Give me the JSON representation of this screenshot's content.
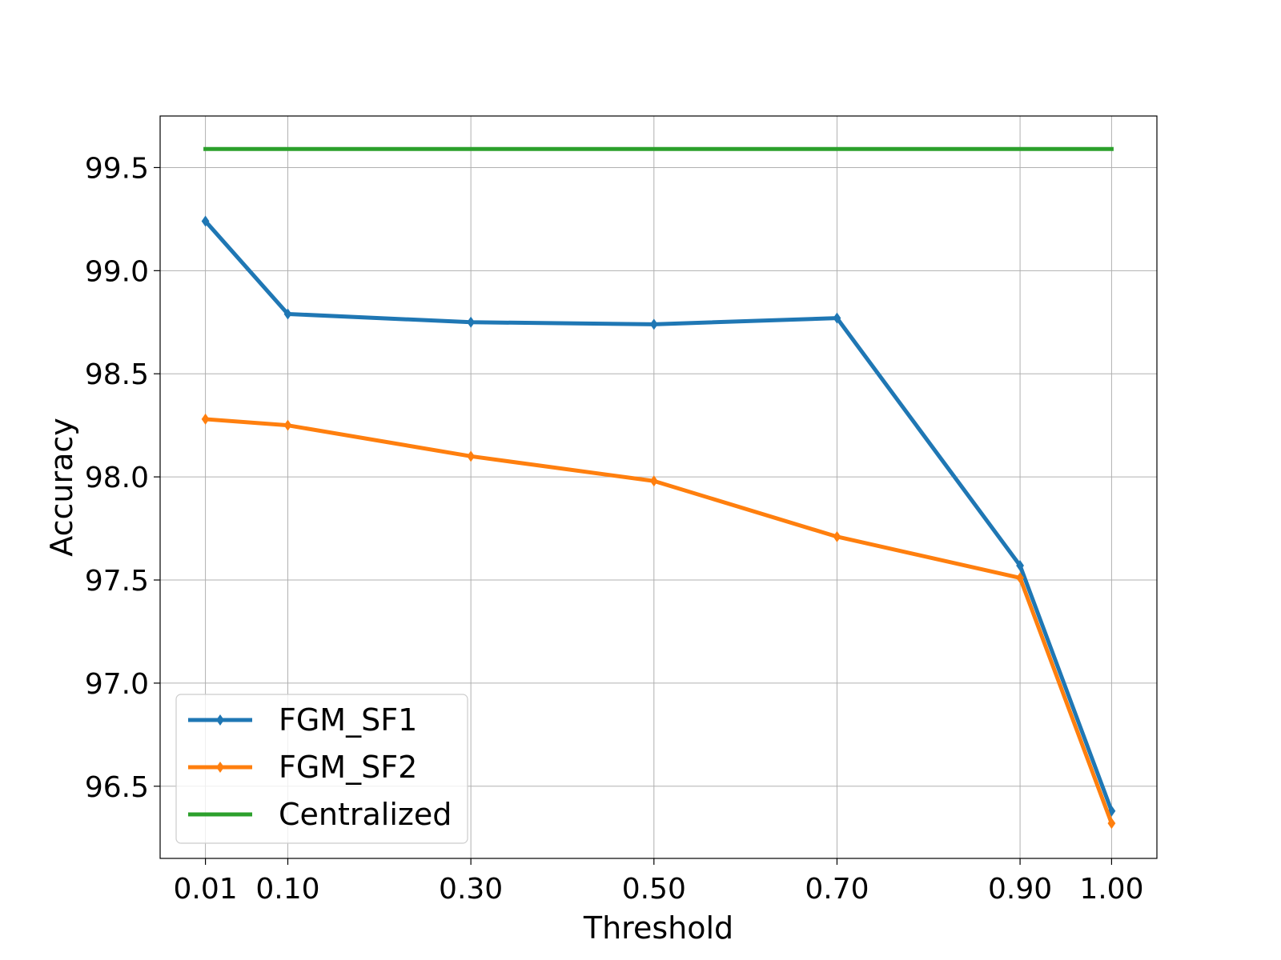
{
  "chart_data": {
    "type": "line",
    "title": "",
    "xlabel": "Threshold",
    "ylabel": "Accuracy",
    "x": [
      0.01,
      0.1,
      0.3,
      0.5,
      0.7,
      0.9,
      1.0
    ],
    "x_tick_labels": [
      "0.01",
      "0.10",
      "0.30",
      "0.50",
      "0.70",
      "0.90",
      "1.00"
    ],
    "y_ticks": [
      96.5,
      97.0,
      97.5,
      98.0,
      98.5,
      99.0,
      99.5
    ],
    "y_tick_labels": [
      "96.5",
      "97.0",
      "97.5",
      "98.0",
      "98.5",
      "99.0",
      "99.5"
    ],
    "xlim": [
      -0.0395,
      1.0495
    ],
    "ylim": [
      96.15,
      99.75
    ],
    "grid": true,
    "legend_position": "lower-left",
    "series": [
      {
        "name": "FGM_SF1",
        "color": "#1f77b4",
        "marker": "diamond",
        "values": [
          99.24,
          98.79,
          98.75,
          98.74,
          98.77,
          97.57,
          96.38
        ]
      },
      {
        "name": "FGM_SF2",
        "color": "#ff7f0e",
        "marker": "diamond",
        "values": [
          98.28,
          98.25,
          98.1,
          97.98,
          97.71,
          97.51,
          96.32
        ]
      },
      {
        "name": "Centralized",
        "color": "#2ca02c",
        "marker": "none",
        "values": [
          99.59,
          99.59,
          99.59,
          99.59,
          99.59,
          99.59,
          99.59
        ]
      }
    ]
  }
}
